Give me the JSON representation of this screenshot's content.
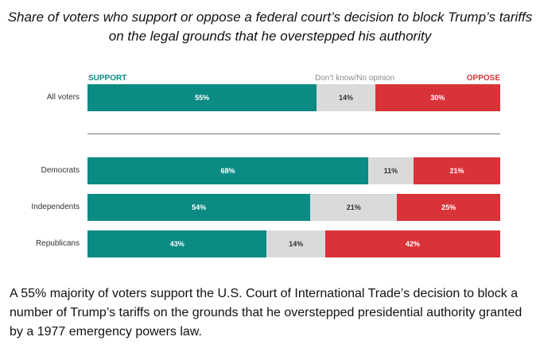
{
  "chart_data": {
    "type": "bar",
    "orientation": "horizontal",
    "stacked": true,
    "title": "Share of voters who support or oppose a federal court’s decision to block Trump’s tariffs on the legal grounds that he overstepped his authority",
    "categories": [
      "All voters",
      "Democrats",
      "Independents",
      "Republicans"
    ],
    "series": [
      {
        "name": "SUPPORT",
        "color": "#0b8b84",
        "values": [
          55,
          68,
          54,
          43
        ]
      },
      {
        "name": "Don’t know/No opinion",
        "color": "#d9dbdb",
        "values": [
          14,
          11,
          21,
          14
        ]
      },
      {
        "name": "OPPOSE",
        "color": "#d9333a",
        "values": [
          30,
          21,
          25,
          42
        ]
      }
    ],
    "labels": [
      [
        "55%",
        "14%",
        "30%"
      ],
      [
        "68%",
        "11%",
        "21%"
      ],
      [
        "54%",
        "21%",
        "25%"
      ],
      [
        "43%",
        "14%",
        "42%"
      ]
    ],
    "legend_position": "top",
    "grid": false
  },
  "caption": "A 55% majority of voters support the U.S. Court of International Trade’s decision to block a number of Trump’s tariffs on the grounds that he overstepped presidential authority granted by a 1977 emergency powers law."
}
